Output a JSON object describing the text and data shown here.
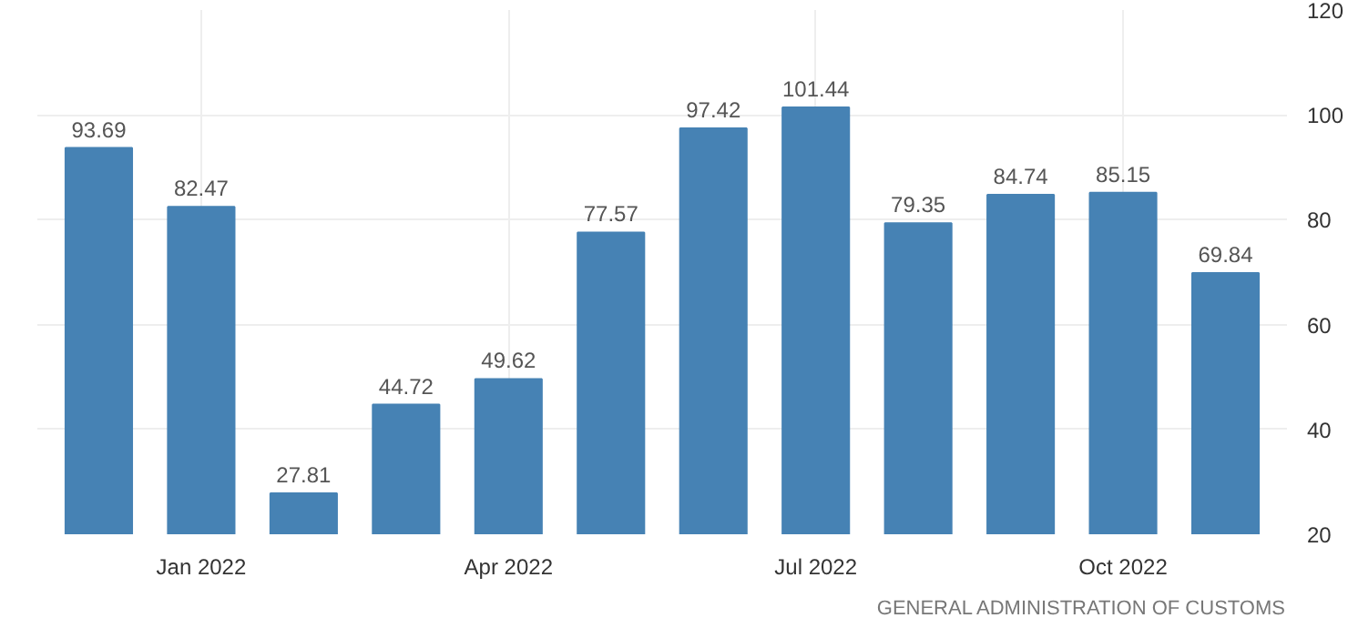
{
  "chart_data": {
    "type": "bar",
    "categories": [
      null,
      "Jan 2022",
      null,
      null,
      "Apr 2022",
      null,
      null,
      "Jul 2022",
      null,
      null,
      "Oct 2022",
      null
    ],
    "values": [
      93.69,
      82.47,
      27.81,
      44.72,
      49.62,
      77.57,
      97.42,
      101.44,
      79.35,
      84.74,
      85.15,
      69.84
    ],
    "color": "#4682b4",
    "ylim": [
      20,
      120
    ],
    "yticks": [
      20,
      40,
      60,
      80,
      100,
      120
    ],
    "grid": true,
    "data_labels": true,
    "annotations": [
      "GENERAL ADMINISTRATION OF CUSTOMS"
    ]
  }
}
